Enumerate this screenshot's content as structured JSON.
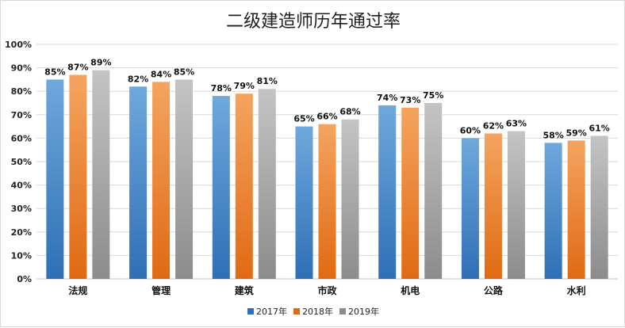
{
  "chart_data": {
    "type": "bar",
    "title": "二级建造师历年通过率",
    "categories": [
      "法规",
      "管理",
      "建筑",
      "市政",
      "机电",
      "公路",
      "水利"
    ],
    "series": [
      {
        "name": "2017年",
        "values": [
          85,
          82,
          78,
          65,
          74,
          60,
          58
        ],
        "labels": [
          "85%",
          "82%",
          "78%",
          "65%",
          "74%",
          "60%",
          "58%"
        ],
        "color_top": "#6fa8dc",
        "color_bottom": "#2f6fb5"
      },
      {
        "name": "2018年",
        "values": [
          87,
          84,
          79,
          66,
          73,
          62,
          59
        ],
        "labels": [
          "87%",
          "84%",
          "79%",
          "66%",
          "73%",
          "62%",
          "59%"
        ],
        "color_top": "#f4a460",
        "color_bottom": "#e06a12"
      },
      {
        "name": "2019年",
        "values": [
          89,
          85,
          81,
          68,
          75,
          63,
          61
        ],
        "labels": [
          "89%",
          "85%",
          "81%",
          "68%",
          "75%",
          "63%",
          "61%"
        ],
        "color_top": "#c4c4c4",
        "color_bottom": "#8c8c8c"
      }
    ],
    "yticks": [
      "0%",
      "10%",
      "20%",
      "30%",
      "40%",
      "50%",
      "60%",
      "70%",
      "80%",
      "90%",
      "100%"
    ],
    "ylim": [
      0,
      100
    ],
    "grid": true,
    "legend": "bottom"
  }
}
